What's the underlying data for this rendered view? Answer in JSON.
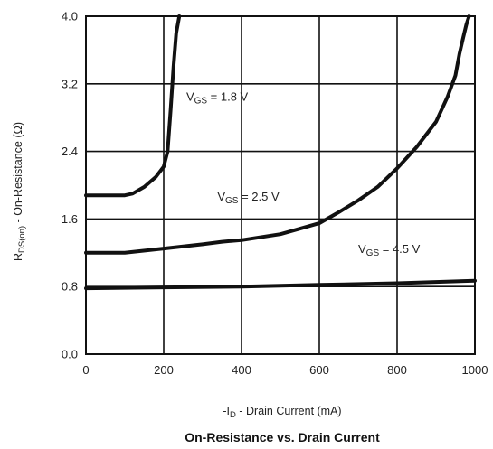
{
  "chart_data": {
    "type": "line",
    "title": "On-Resistance vs. Drain Current",
    "xlabel": {
      "prefix": "-I",
      "sub": "D",
      "suffix": " - Drain Current (mA)"
    },
    "ylabel": {
      "prefix": "R",
      "sub": "DS(on)",
      "suffix": " - On-Resistance (Ω)"
    },
    "xlim": [
      0,
      1000
    ],
    "ylim": [
      0,
      4.0
    ],
    "x_ticks": [
      0,
      200,
      400,
      600,
      800,
      1000
    ],
    "y_ticks": [
      0.0,
      0.8,
      1.6,
      2.4,
      3.2,
      4.0
    ],
    "x_tick_labels": [
      "0",
      "200",
      "400",
      "600",
      "800",
      "1000"
    ],
    "y_tick_labels": [
      "0.0",
      "0.8",
      "1.6",
      "2.4",
      "3.2",
      "4.0"
    ],
    "grid": true,
    "series": [
      {
        "name": "VGS = 1.8 V",
        "label": {
          "prefix": "V",
          "sub": "GS",
          "suffix": " = 1.8 V"
        },
        "label_at": [
          258,
          3.0
        ],
        "x": [
          0,
          50,
          100,
          120,
          150,
          180,
          200,
          210,
          218,
          225,
          232,
          240
        ],
        "y": [
          1.88,
          1.88,
          1.88,
          1.9,
          1.98,
          2.1,
          2.22,
          2.4,
          2.9,
          3.4,
          3.8,
          4.0
        ]
      },
      {
        "name": "VGS = 2.5 V",
        "label": {
          "prefix": "V",
          "sub": "GS",
          "suffix": " = 2.5 V"
        },
        "label_at": [
          338,
          1.82
        ],
        "x": [
          0,
          50,
          100,
          200,
          300,
          350,
          400,
          500,
          600,
          650,
          700,
          750,
          800,
          850,
          900,
          930,
          950,
          960,
          970,
          978,
          985
        ],
        "y": [
          1.2,
          1.2,
          1.2,
          1.25,
          1.3,
          1.33,
          1.35,
          1.42,
          1.55,
          1.68,
          1.82,
          1.98,
          2.2,
          2.45,
          2.75,
          3.05,
          3.3,
          3.55,
          3.75,
          3.9,
          4.0
        ]
      },
      {
        "name": "VGS = 4.5 V",
        "label": {
          "prefix": "V",
          "sub": "GS",
          "suffix": " = 4.5 V"
        },
        "label_at": [
          700,
          1.2
        ],
        "x": [
          0,
          200,
          400,
          600,
          800,
          1000
        ],
        "y": [
          0.78,
          0.79,
          0.8,
          0.82,
          0.84,
          0.87
        ]
      }
    ],
    "colors": {
      "line": "#111111",
      "grid": "#111111",
      "text": "#222222"
    }
  }
}
